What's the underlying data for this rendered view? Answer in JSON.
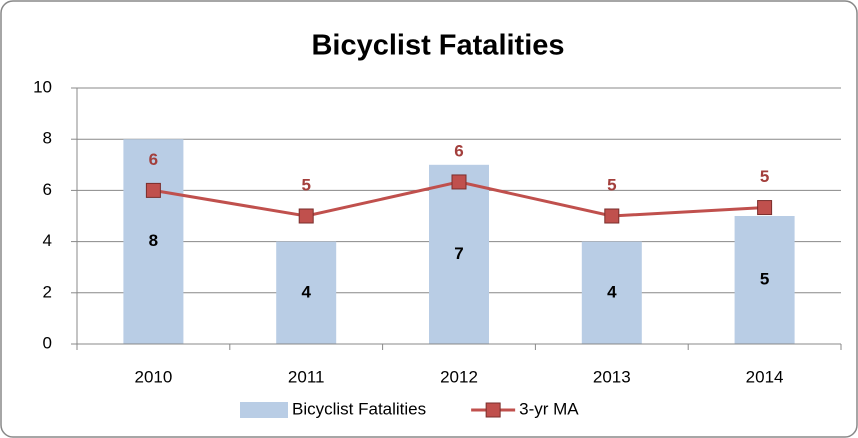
{
  "chart_data": {
    "type": "bar_line",
    "title": "Bicyclist Fatalities",
    "categories": [
      "2010",
      "2011",
      "2012",
      "2013",
      "2014"
    ],
    "series": [
      {
        "name": "Bicyclist Fatalities",
        "type": "bar",
        "color": "#b9cde5",
        "values": [
          8,
          4,
          7,
          4,
          5
        ]
      },
      {
        "name": "3-yr MA",
        "type": "line",
        "color": "#c0504d",
        "values": [
          6,
          5,
          6.33,
          5,
          5.33
        ],
        "value_labels": [
          "6",
          "5",
          "6",
          "5",
          "5"
        ]
      }
    ],
    "ylim": [
      0,
      10
    ],
    "yticks": [
      0,
      2,
      4,
      6,
      8,
      10
    ],
    "grid": true,
    "legend": "bottom"
  }
}
